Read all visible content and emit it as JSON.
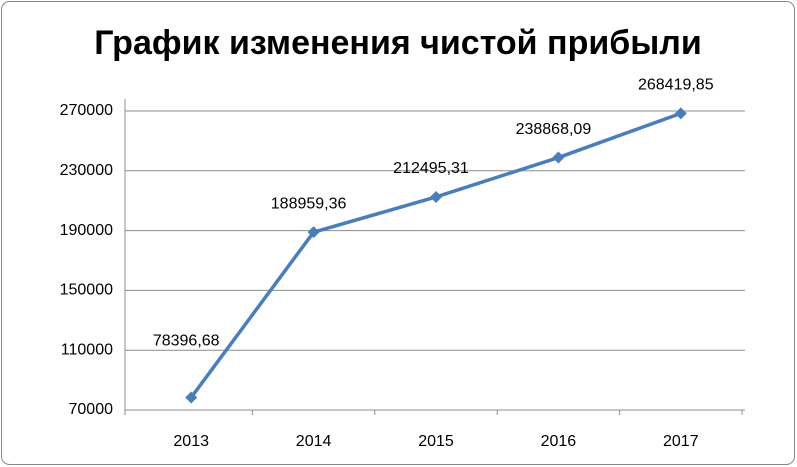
{
  "chart_data": {
    "type": "line",
    "title": "График изменения чистой прибыли",
    "categories": [
      "2013",
      "2014",
      "2015",
      "2016",
      "2017"
    ],
    "values": [
      78396.68,
      188959.36,
      212495.31,
      238868.09,
      268419.85
    ],
    "value_labels": [
      "78396,68",
      "188959,36",
      "212495,31",
      "238868,09",
      "268419,85"
    ],
    "color": "#4a7ebb",
    "ylim": [
      70000,
      270000
    ],
    "yticks": [
      70000,
      110000,
      150000,
      190000,
      230000,
      270000
    ],
    "grid": true
  }
}
